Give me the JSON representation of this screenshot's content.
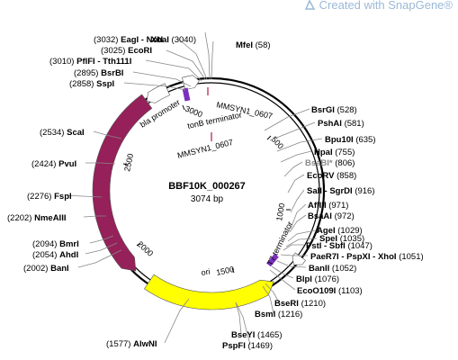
{
  "watermark": {
    "text": "Created with SnapGene®"
  },
  "plasmid": {
    "name": "BBF10K_000267",
    "size_label": "3074 bp",
    "length": 3074
  },
  "colors": {
    "bla": "#96205a",
    "ori": "#ffff00",
    "promoter": "#ffffff",
    "terminator": "#ffffff",
    "primer_bind": "#7a2fbd",
    "misc": "#c0385a"
  },
  "features": [
    {
      "id": "bla",
      "label": "bla",
      "start": 1907,
      "end": 2768,
      "direction": "reverse",
      "color": "#96205a"
    },
    {
      "id": "ori",
      "label": "ori",
      "start": 1243,
      "end": 1831,
      "direction": "reverse",
      "color": "#ffff00"
    },
    {
      "id": "bla-promoter",
      "label": "bla promoter",
      "start": 2769,
      "end": 2873,
      "direction": "reverse",
      "color": "#ffffff"
    },
    {
      "id": "tonb-terminator",
      "label": "tonB terminator",
      "start": 2950,
      "end": 3020,
      "direction": "forward",
      "color": "#ffffff"
    },
    {
      "id": "t7-terminator",
      "label": "T7 terminator",
      "start": 1080,
      "end": 1127,
      "direction": "forward",
      "color": "#ffffff"
    }
  ],
  "inner_labels": {
    "mmsyn_inner": "MMSYN1_0607",
    "mmsyn_outer": "MMSYN1_0607"
  },
  "ticks": [
    "500",
    "1000",
    "1500",
    "2000",
    "2500",
    "3000"
  ],
  "sites": [
    {
      "name": "XbaI",
      "pos": "(3040)"
    },
    {
      "name": "MfeI",
      "pos": "(58)"
    },
    {
      "name": "EagI - NotI",
      "pos": "(3032)"
    },
    {
      "name": "EcoRI",
      "pos": "(3025)"
    },
    {
      "name": "PflFI - Tth111I",
      "pos": "(3010)"
    },
    {
      "name": "BsrBI",
      "pos": "(2895)"
    },
    {
      "name": "SspI",
      "pos": "(2858)"
    },
    {
      "name": "ScaI",
      "pos": "(2534)"
    },
    {
      "name": "PvuI",
      "pos": "(2424)"
    },
    {
      "name": "FspI",
      "pos": "(2276)"
    },
    {
      "name": "NmeAIII",
      "pos": "(2202)"
    },
    {
      "name": "BmrI",
      "pos": "(2094)"
    },
    {
      "name": "AhdI",
      "pos": "(2054)"
    },
    {
      "name": "BanI",
      "pos": "(2002)"
    },
    {
      "name": "AlwNI",
      "pos": "(1577)"
    },
    {
      "name": "PspFI",
      "pos": "(1469)"
    },
    {
      "name": "BseYI",
      "pos": "(1465)"
    },
    {
      "name": "BsmI",
      "pos": "(1216)"
    },
    {
      "name": "BseRI",
      "pos": "(1210)"
    },
    {
      "name": "EcoO109I",
      "pos": "(1103)"
    },
    {
      "name": "BlpI",
      "pos": "(1076)"
    },
    {
      "name": "BanII",
      "pos": "(1052)"
    },
    {
      "name": "PaeR7I - PspXI - XhoI",
      "pos": "(1051)"
    },
    {
      "name": "PstI - SbfI",
      "pos": "(1047)"
    },
    {
      "name": "SpeI",
      "pos": "(1035)"
    },
    {
      "name": "AgeI",
      "pos": "(1029)"
    },
    {
      "name": "BsaAI",
      "pos": "(972)"
    },
    {
      "name": "AflIII",
      "pos": "(971)"
    },
    {
      "name": "SalI - SgrDI",
      "pos": "(916)"
    },
    {
      "name": "EcoRV",
      "pos": "(858)"
    },
    {
      "name": "BsaBI*",
      "pos": "(806)"
    },
    {
      "name": "HpaI",
      "pos": "(755)"
    },
    {
      "name": "Bpu10I",
      "pos": "(635)"
    },
    {
      "name": "PshAI",
      "pos": "(581)"
    },
    {
      "name": "BsrGI",
      "pos": "(528)"
    }
  ]
}
